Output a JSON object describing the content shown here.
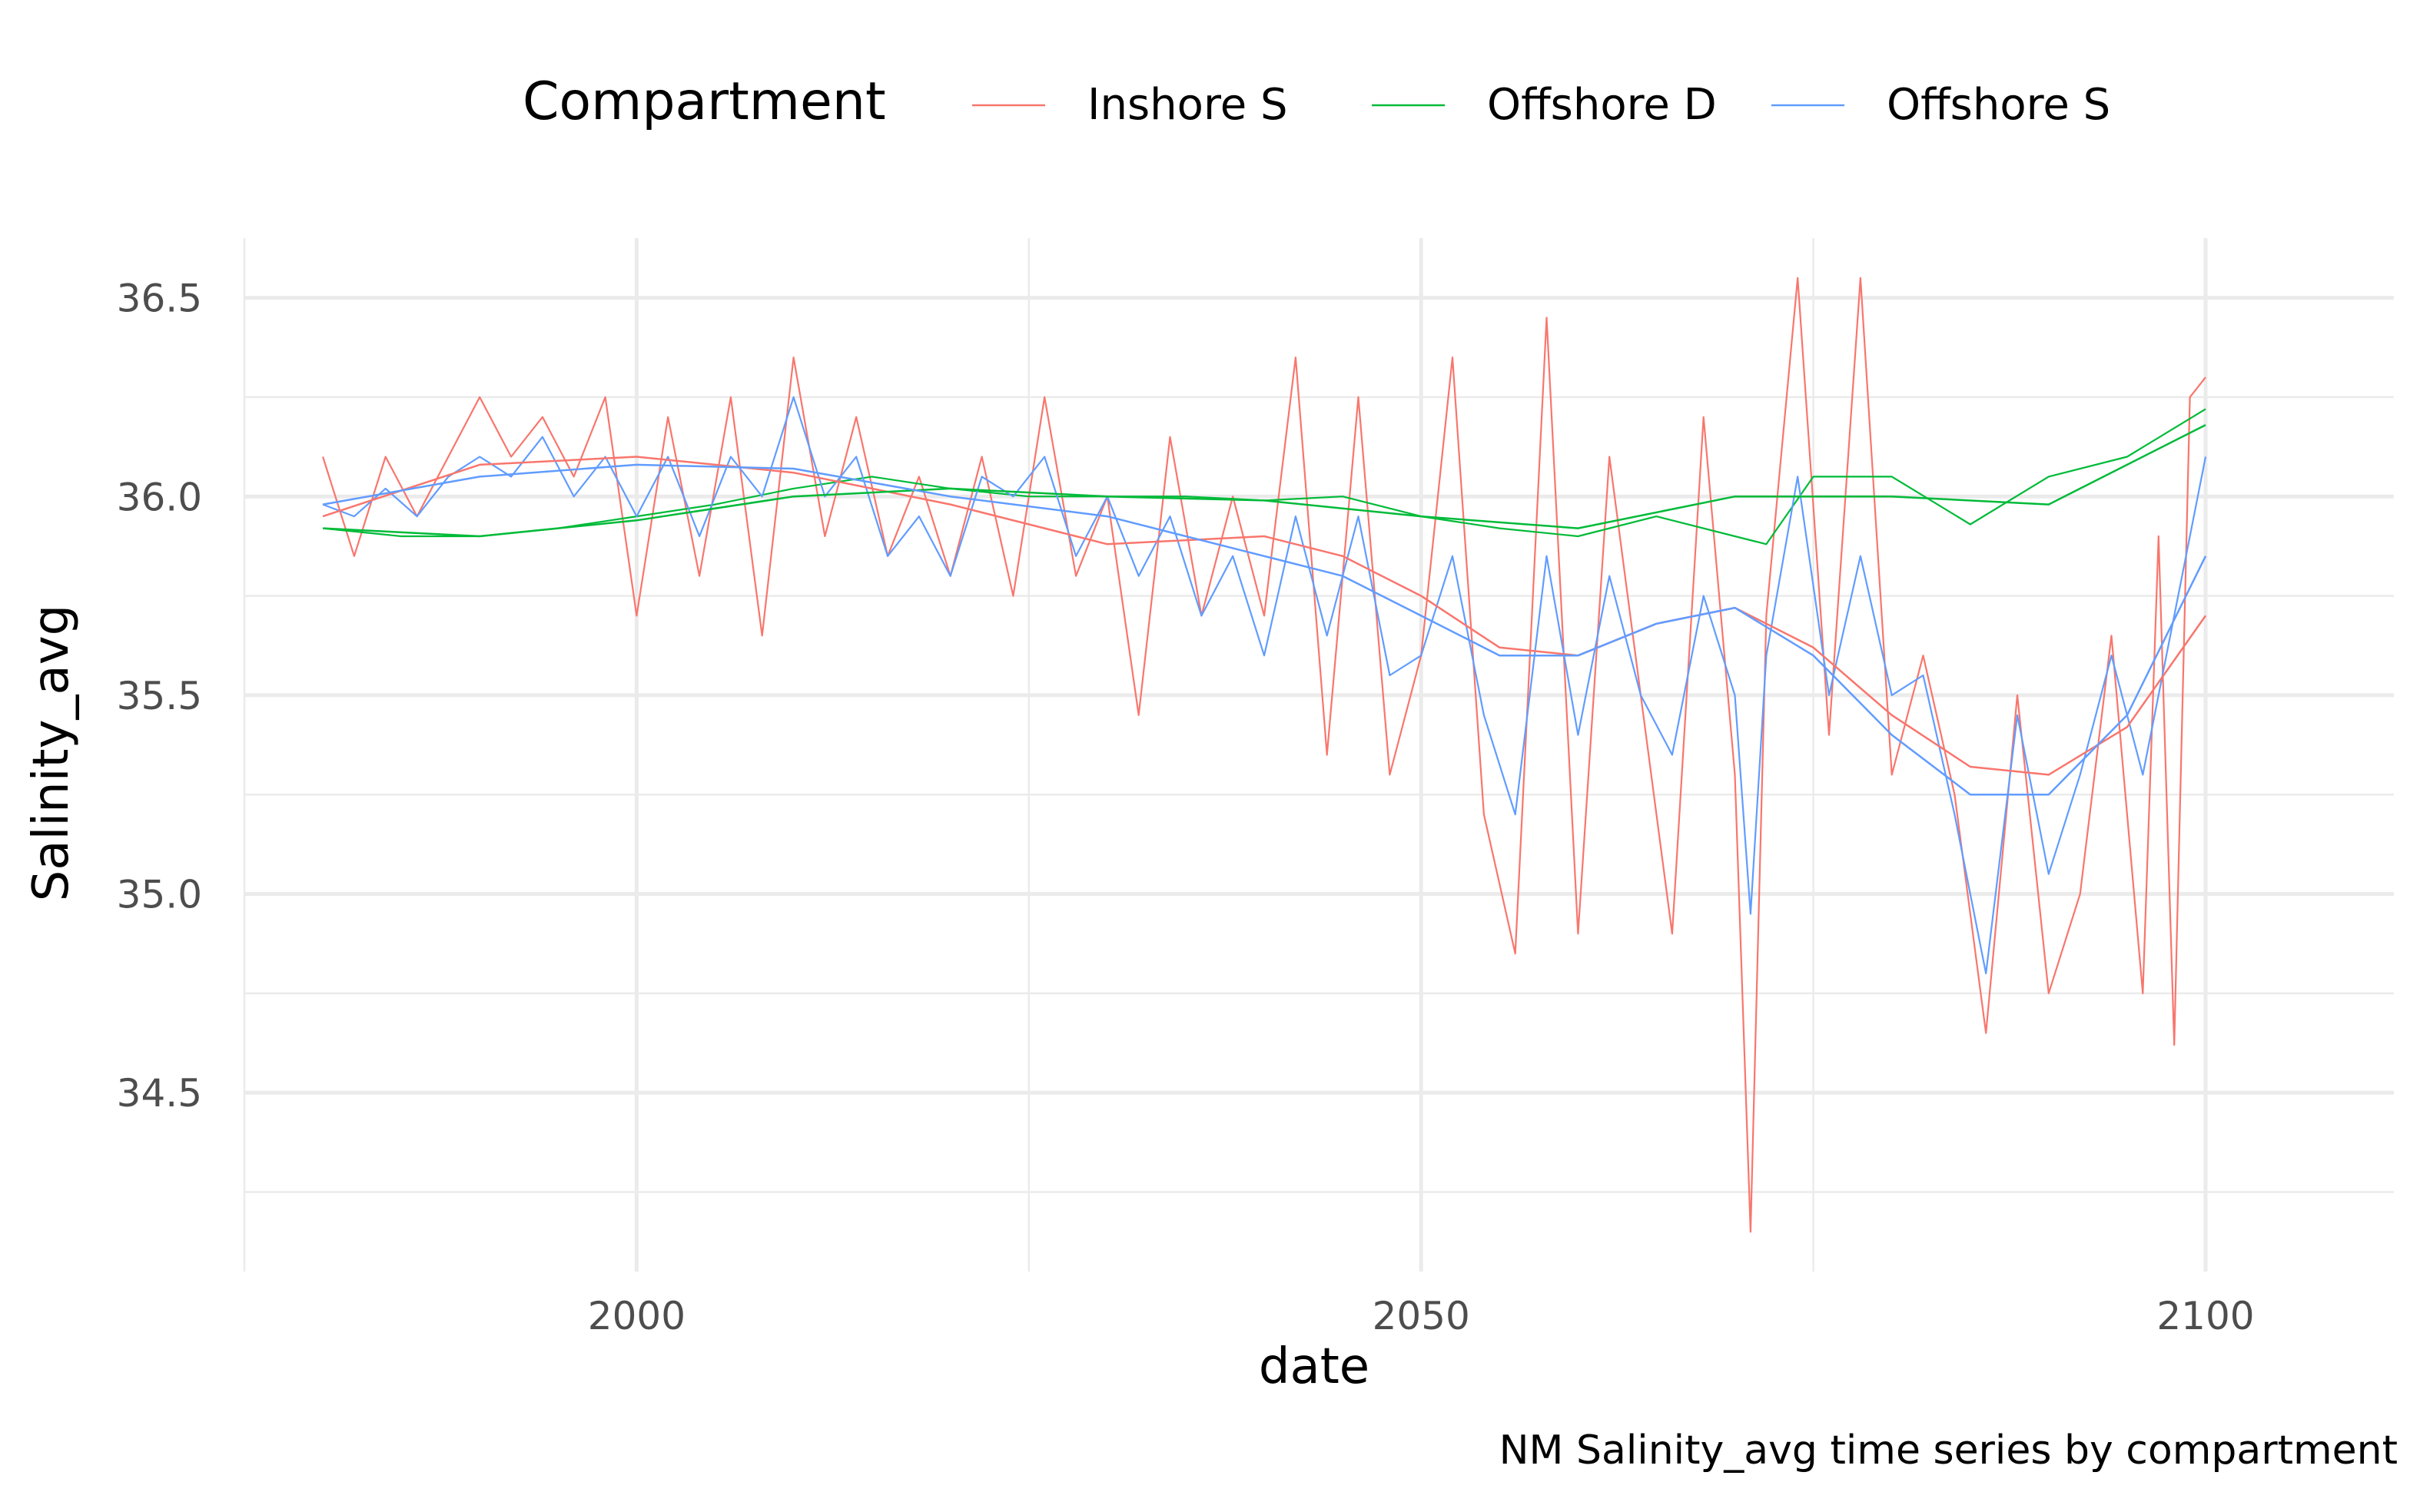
{
  "chart_data": {
    "type": "line",
    "xlabel": "date",
    "ylabel": "Salinity_avg",
    "caption": "NM Salinity_avg time series by compartment",
    "xlim": [
      1975,
      2112
    ],
    "ylim": [
      34.05,
      36.65
    ],
    "x_ticks": [
      2000,
      2050,
      2100
    ],
    "x_tick_labels": [
      "2000",
      "2050",
      "2100"
    ],
    "x_minor_ticks": [
      1975,
      2025,
      2075
    ],
    "y_ticks": [
      34.5,
      35.0,
      35.5,
      36.0,
      36.5
    ],
    "y_tick_labels": [
      "34.5",
      "35.0",
      "35.5",
      "36.0",
      "36.5"
    ],
    "y_minor_ticks": [
      34.25,
      34.75,
      35.25,
      35.75,
      36.25
    ],
    "grid": true,
    "legend": {
      "title": "Compartment",
      "position": "top"
    },
    "series": [
      {
        "name": "Inshore S",
        "color": "#F8766D",
        "x": [
          1980,
          1982,
          1984,
          1986,
          1988,
          1990,
          1992,
          1994,
          1996,
          1998,
          2000,
          2002,
          2004,
          2006,
          2008,
          2010,
          2012,
          2014,
          2016,
          2018,
          2020,
          2022,
          2024,
          2026,
          2028,
          2030,
          2032,
          2034,
          2036,
          2038,
          2040,
          2042,
          2044,
          2046,
          2048,
          2050,
          2052,
          2054,
          2056,
          2058,
          2060,
          2062,
          2064,
          2066,
          2068,
          2070,
          2071,
          2072,
          2074,
          2076,
          2078,
          2080,
          2082,
          2084,
          2086,
          2088,
          2090,
          2092,
          2094,
          2096,
          2097,
          2098,
          2099,
          2100
        ],
        "values": [
          36.1,
          35.85,
          36.1,
          35.95,
          36.1,
          36.25,
          36.1,
          36.2,
          36.05,
          36.25,
          35.7,
          36.2,
          35.8,
          36.25,
          35.65,
          36.35,
          35.9,
          36.2,
          35.85,
          36.05,
          35.8,
          36.1,
          35.75,
          36.25,
          35.8,
          36.0,
          35.45,
          36.15,
          35.7,
          36.0,
          35.7,
          36.35,
          35.35,
          36.25,
          35.3,
          35.6,
          36.35,
          35.2,
          34.85,
          36.45,
          34.9,
          36.1,
          35.5,
          34.9,
          36.2,
          35.3,
          34.15,
          35.7,
          36.55,
          35.4,
          36.55,
          35.3,
          35.6,
          35.25,
          34.65,
          35.5,
          34.75,
          35.0,
          35.65,
          34.75,
          35.9,
          34.62,
          36.25,
          36.3
        ]
      },
      {
        "name": "Offshore D",
        "color": "#00BA38",
        "x": [
          1980,
          1985,
          1990,
          1995,
          2000,
          2005,
          2010,
          2015,
          2020,
          2025,
          2030,
          2035,
          2040,
          2045,
          2050,
          2055,
          2060,
          2065,
          2070,
          2072,
          2075,
          2080,
          2085,
          2090,
          2095,
          2100
        ],
        "values": [
          35.92,
          35.9,
          35.9,
          35.92,
          35.95,
          35.98,
          36.02,
          36.05,
          36.02,
          36.0,
          36.0,
          36.0,
          35.99,
          36.0,
          35.95,
          35.92,
          35.9,
          35.95,
          35.9,
          35.88,
          36.05,
          36.05,
          35.93,
          36.05,
          36.1,
          36.22
        ]
      },
      {
        "name": "Offshore S",
        "color": "#619CFF",
        "x": [
          1980,
          1982,
          1984,
          1986,
          1988,
          1990,
          1992,
          1994,
          1996,
          1998,
          2000,
          2002,
          2004,
          2006,
          2008,
          2010,
          2012,
          2014,
          2016,
          2018,
          2020,
          2022,
          2024,
          2026,
          2028,
          2030,
          2032,
          2034,
          2036,
          2038,
          2040,
          2042,
          2044,
          2046,
          2048,
          2050,
          2052,
          2054,
          2056,
          2058,
          2060,
          2062,
          2064,
          2066,
          2068,
          2070,
          2071,
          2072,
          2074,
          2076,
          2078,
          2080,
          2082,
          2084,
          2086,
          2088,
          2090,
          2092,
          2094,
          2096,
          2098,
          2100
        ],
        "values": [
          35.98,
          35.95,
          36.02,
          35.95,
          36.05,
          36.1,
          36.05,
          36.15,
          36.0,
          36.1,
          35.95,
          36.1,
          35.9,
          36.1,
          36.0,
          36.25,
          36.0,
          36.1,
          35.85,
          35.95,
          35.8,
          36.05,
          36.0,
          36.1,
          35.85,
          36.0,
          35.8,
          35.95,
          35.7,
          35.85,
          35.6,
          35.95,
          35.65,
          35.95,
          35.55,
          35.6,
          35.85,
          35.45,
          35.2,
          35.85,
          35.4,
          35.8,
          35.5,
          35.35,
          35.75,
          35.5,
          34.95,
          35.6,
          36.05,
          35.5,
          35.85,
          35.5,
          35.55,
          35.2,
          34.8,
          35.45,
          35.05,
          35.3,
          35.6,
          35.3,
          35.7,
          36.1
        ]
      },
      {
        "name": "Inshore S",
        "color": "#F8766D",
        "smooth": true,
        "x": [
          1980,
          1990,
          2000,
          2010,
          2020,
          2030,
          2040,
          2045,
          2050,
          2055,
          2060,
          2065,
          2070,
          2075,
          2080,
          2085,
          2090,
          2095,
          2100
        ],
        "values": [
          35.95,
          36.08,
          36.1,
          36.06,
          35.98,
          35.88,
          35.9,
          35.85,
          35.75,
          35.62,
          35.6,
          35.68,
          35.72,
          35.62,
          35.45,
          35.32,
          35.3,
          35.42,
          35.7
        ]
      },
      {
        "name": "Offshore D",
        "color": "#00BA38",
        "smooth": true,
        "x": [
          1980,
          1990,
          2000,
          2010,
          2020,
          2030,
          2040,
          2050,
          2060,
          2070,
          2080,
          2090,
          2100
        ],
        "values": [
          35.92,
          35.9,
          35.94,
          36.0,
          36.02,
          36.0,
          35.99,
          35.95,
          35.92,
          36.0,
          36.0,
          35.98,
          36.18
        ]
      },
      {
        "name": "Offshore S",
        "color": "#619CFF",
        "smooth": true,
        "x": [
          1980,
          1990,
          2000,
          2010,
          2020,
          2030,
          2040,
          2045,
          2050,
          2055,
          2060,
          2065,
          2070,
          2075,
          2080,
          2085,
          2090,
          2095,
          2100
        ],
        "values": [
          35.98,
          36.05,
          36.08,
          36.07,
          36.0,
          35.95,
          35.85,
          35.8,
          35.7,
          35.6,
          35.6,
          35.68,
          35.72,
          35.6,
          35.4,
          35.25,
          35.25,
          35.45,
          35.85
        ]
      }
    ]
  }
}
